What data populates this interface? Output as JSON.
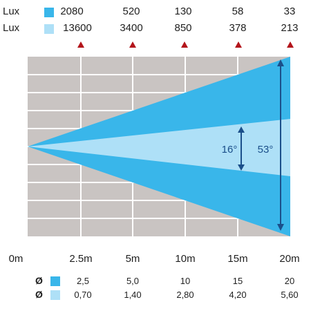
{
  "header": {
    "rows": [
      {
        "label": "Lux",
        "swatch_color": "#39b6ea",
        "values": [
          "2080",
          "520",
          "130",
          "58",
          "33"
        ]
      },
      {
        "label": "Lux",
        "swatch_color": "#aee0f7",
        "values": [
          "13600",
          "3400",
          "850",
          "378",
          "213"
        ]
      }
    ],
    "marker_color": "#b3151b"
  },
  "beam": {
    "outer_color": "#39b6ea",
    "inner_color": "#aee0f7",
    "background_color": "#c9c4c2",
    "grid_color": "#ffffff",
    "arrow_color": "#1b4f8a",
    "angles": [
      {
        "id": "narrow",
        "label": "16°"
      },
      {
        "id": "wide",
        "label": "53°"
      }
    ]
  },
  "distances": [
    "0m",
    "2.5m",
    "5m",
    "10m",
    "15m",
    "20m"
  ],
  "diameters": {
    "symbol": "Ø",
    "rows": [
      {
        "swatch_color": "#39b6ea",
        "values": [
          "2,5",
          "5,0",
          "10",
          "15",
          "20"
        ]
      },
      {
        "swatch_color": "#aee0f7",
        "values": [
          "0,70",
          "1,40",
          "2,80",
          "4,20",
          "5,60"
        ]
      }
    ]
  }
}
